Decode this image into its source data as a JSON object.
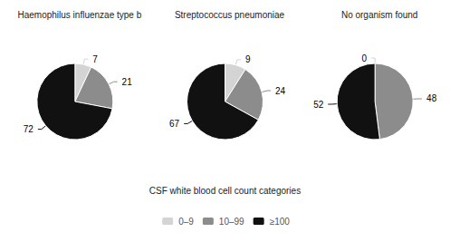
{
  "chart_data": [
    {
      "type": "pie",
      "title": "Haemophilus influenzae type b",
      "categories": [
        "0–9",
        "10–99",
        "≥100"
      ],
      "values": [
        7,
        21,
        72
      ],
      "colors": [
        "#d4d4d4",
        "#8c8c8c",
        "#111111"
      ],
      "data_labels": true,
      "legend": "bottom",
      "legend_title": "CSF white blood cell count categories"
    },
    {
      "type": "pie",
      "title": "Streptococcus pneumoniae",
      "categories": [
        "0–9",
        "10–99",
        "≥100"
      ],
      "values": [
        9,
        24,
        67
      ],
      "colors": [
        "#d4d4d4",
        "#8c8c8c",
        "#111111"
      ],
      "data_labels": true,
      "legend": "bottom"
    },
    {
      "type": "pie",
      "title": "No organism found",
      "categories": [
        "0–9",
        "10–99",
        "≥100"
      ],
      "values": [
        0,
        48,
        52
      ],
      "colors": [
        "#d4d4d4",
        "#8c8c8c",
        "#111111"
      ],
      "data_labels": true,
      "legend": "bottom"
    }
  ]
}
